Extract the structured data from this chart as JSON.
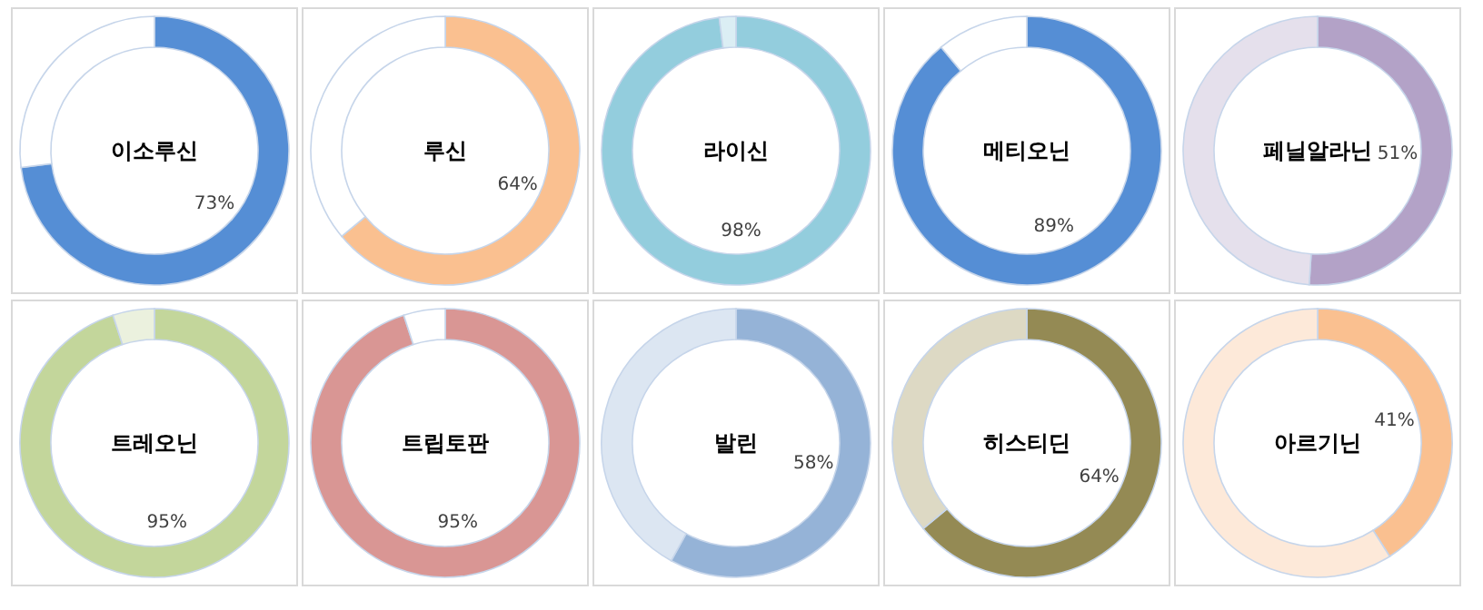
{
  "chart_data": [
    {
      "type": "donut",
      "title": "이소루신",
      "categories": [
        null,
        null
      ],
      "values": [
        73,
        27
      ],
      "colors": [
        "#558ed5",
        "#ffffff"
      ],
      "value_labels": [
        "73%",
        null
      ]
    },
    {
      "type": "donut",
      "title": "루신",
      "categories": [
        null,
        null
      ],
      "values": [
        64,
        36
      ],
      "colors": [
        "#fac090",
        "#ffffff"
      ],
      "value_labels": [
        "64%",
        null
      ]
    },
    {
      "type": "donut",
      "title": "라이신",
      "categories": [
        null,
        null
      ],
      "values": [
        98,
        2
      ],
      "colors": [
        "#93cddd",
        "#dbeef4"
      ],
      "value_labels": [
        "98%",
        null
      ]
    },
    {
      "type": "donut",
      "title": "메티오닌",
      "categories": [
        null,
        null
      ],
      "values": [
        89,
        11
      ],
      "colors": [
        "#558ed5",
        "#ffffff"
      ],
      "value_labels": [
        "89%",
        null
      ]
    },
    {
      "type": "donut",
      "title": "페닐알라닌",
      "categories": [
        null,
        null
      ],
      "values": [
        51,
        49
      ],
      "colors": [
        "#b3a2c7",
        "#e5e0ec"
      ],
      "value_labels": [
        "51%",
        null
      ]
    },
    {
      "type": "donut",
      "title": "트레오닌",
      "categories": [
        null,
        null
      ],
      "values": [
        95,
        5
      ],
      "colors": [
        "#c3d69b",
        "#ebf1de"
      ],
      "value_labels": [
        "95%",
        null
      ]
    },
    {
      "type": "donut",
      "title": "트립토판",
      "categories": [
        null,
        null
      ],
      "values": [
        95,
        5
      ],
      "colors": [
        "#d99694",
        "#ffffff"
      ],
      "value_labels": [
        "95%",
        null
      ]
    },
    {
      "type": "donut",
      "title": "발린",
      "categories": [
        null,
        null
      ],
      "values": [
        58,
        42
      ],
      "colors": [
        "#95b3d7",
        "#dce6f2"
      ],
      "value_labels": [
        "58%",
        null
      ]
    },
    {
      "type": "donut",
      "title": "히스티딘",
      "categories": [
        null,
        null
      ],
      "values": [
        64,
        36
      ],
      "colors": [
        "#948a54",
        "#ddd9c4"
      ],
      "value_labels": [
        "64%",
        null
      ]
    },
    {
      "type": "donut",
      "title": "아르기닌",
      "categories": [
        null,
        null
      ],
      "values": [
        41,
        59
      ],
      "colors": [
        "#fac090",
        "#fde9d9"
      ],
      "value_labels": [
        "41%",
        null
      ]
    }
  ]
}
